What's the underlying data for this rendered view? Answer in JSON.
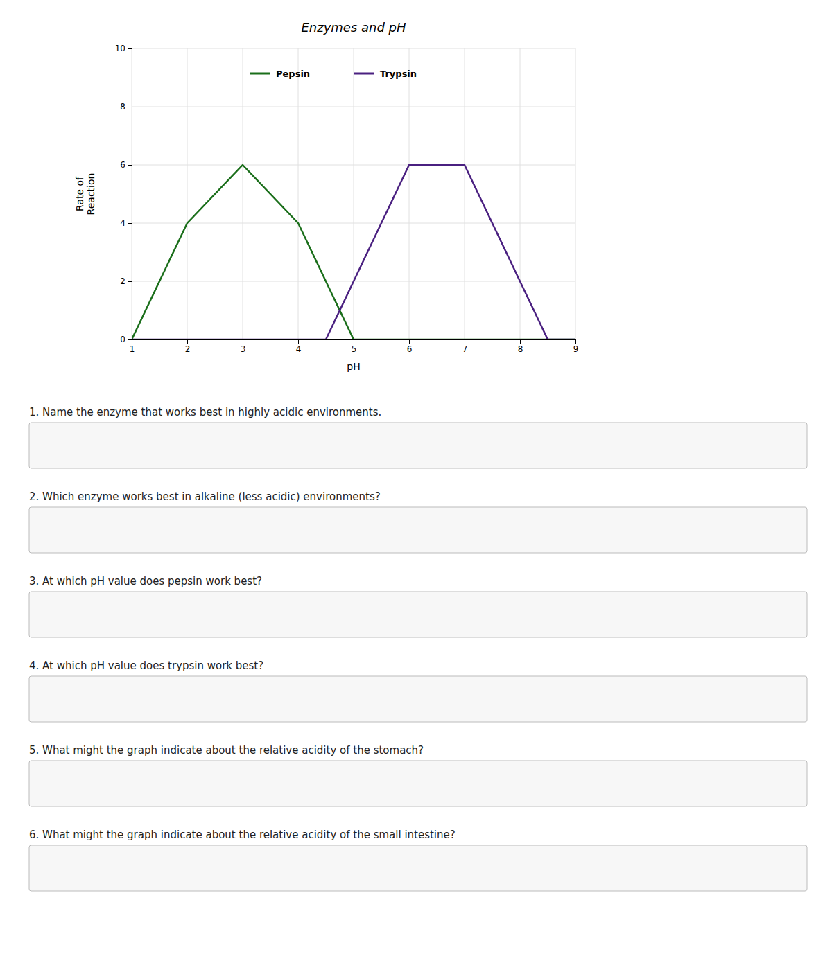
{
  "chart_data": {
    "type": "line",
    "title": "Enzymes and pH",
    "x_label": "pH",
    "y_label": "Rate of\nReaction",
    "xlim": [
      1,
      9
    ],
    "ylim": [
      0,
      10
    ],
    "xticks": [
      1,
      2,
      3,
      4,
      5,
      6,
      7,
      8,
      9
    ],
    "yticks": [
      0,
      2,
      4,
      6,
      8,
      10
    ],
    "grid": true,
    "legend": "top",
    "series": [
      {
        "name": "Pepsin",
        "color": "#1a6e1a",
        "x": [
          1,
          2,
          3,
          4,
          4.5,
          5,
          9
        ],
        "values": [
          0,
          4,
          6,
          4,
          2,
          0,
          0
        ]
      },
      {
        "name": "Trypsin",
        "color": "#4a2080",
        "x": [
          1,
          4,
          4.5,
          5,
          6,
          7,
          8,
          8.5,
          9
        ],
        "values": [
          0,
          0,
          0,
          2,
          6,
          6,
          2,
          0,
          0
        ]
      }
    ],
    "annotations": [
      "1.  Name the enzyme that works best in highly acidic environments.",
      "2.  Which enzyme works best in alkaline (less acidic) environments?",
      "3.  At which pH value does pepsin work best?",
      "4.  At which pH value does trypsin work best?",
      "5.  What might the graph indicate about the relative acidity of the stomach?",
      "6.  What might the graph indicate about the relative acidity of the small intestine?"
    ]
  }
}
